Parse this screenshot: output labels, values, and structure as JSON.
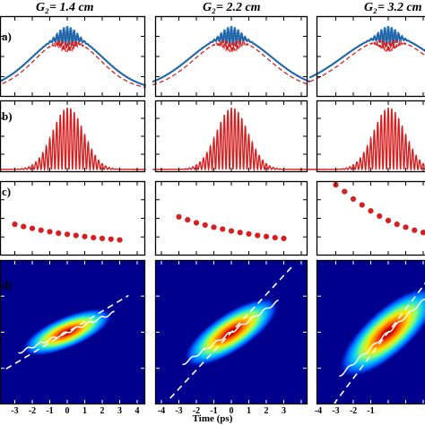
{
  "chart_data": {
    "type": "multi-panel",
    "columns": [
      {
        "title": "G₂= 1.4 cm"
      },
      {
        "title": "G₂= 2.2 cm"
      },
      {
        "title": "G₂= 3.2 cm"
      }
    ],
    "rows": [
      {
        "label": "a)",
        "type": "line",
        "series": [
          {
            "style": "solid",
            "color": "#2a7ab8"
          },
          {
            "style": "dashed",
            "color": "#d62020"
          },
          {
            "style": "dotted",
            "color": "#1f3a8c"
          }
        ]
      },
      {
        "label": "b)",
        "type": "line",
        "series": [
          {
            "style": "solid",
            "color": "#d62020"
          }
        ]
      },
      {
        "label": "c)",
        "type": "scatter",
        "color": "#d62020",
        "x": [
          -3,
          -2.5,
          -2,
          -1.5,
          -1,
          -0.5,
          0,
          0.5,
          1,
          1.5,
          2,
          2.5,
          3
        ],
        "y_by_column": [
          [
            0.42,
            0.39,
            0.365,
            0.34,
            0.32,
            0.3,
            0.285,
            0.27,
            0.255,
            0.24,
            0.23,
            0.22,
            0.21
          ],
          [
            0.52,
            0.48,
            0.44,
            0.41,
            0.38,
            0.355,
            0.33,
            0.31,
            0.29,
            0.27,
            0.255,
            0.24,
            0.23
          ],
          [
            0.95,
            0.86,
            0.76,
            0.68,
            0.6,
            0.53,
            0.47,
            0.42,
            0.38,
            0.34,
            0.31,
            0.28,
            0.26
          ]
        ]
      },
      {
        "label": "d)",
        "type": "heatmap",
        "colormap": "jet",
        "ridge_slope_by_column": [
          0.35,
          0.55,
          0.75
        ],
        "dashed_slope_by_column": [
          0.5,
          0.9,
          1.1
        ]
      }
    ],
    "x_ticks_by_column": [
      [
        "-3",
        "-2",
        "-1",
        "0",
        "1",
        "2",
        "3",
        "4"
      ],
      [
        "-4",
        "-3",
        "-2",
        "-1",
        "0",
        "1",
        "2",
        "3"
      ],
      [
        "-4",
        "-3",
        "-2",
        "-1"
      ]
    ],
    "xlabel": "Time (ps)",
    "grid": false
  }
}
